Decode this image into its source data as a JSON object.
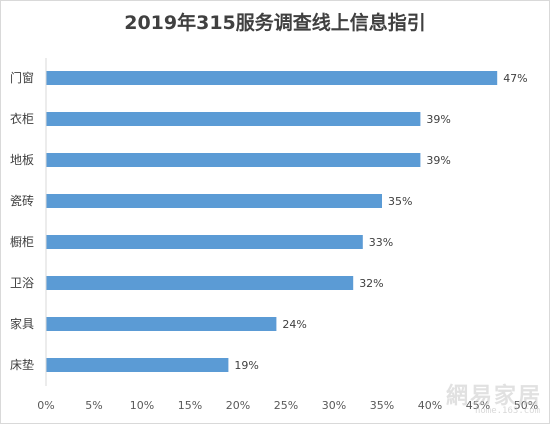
{
  "chart_data": {
    "type": "bar",
    "orientation": "horizontal",
    "title": "2019年315服务调查线上信息指引",
    "categories": [
      "门窗",
      "衣柜",
      "地板",
      "瓷砖",
      "橱柜",
      "卫浴",
      "家具",
      "床垫"
    ],
    "values": [
      47,
      39,
      39,
      35,
      33,
      32,
      24,
      19
    ],
    "value_labels": [
      "47%",
      "39%",
      "39%",
      "35%",
      "33%",
      "32%",
      "24%",
      "19%"
    ],
    "xlim": [
      0,
      50
    ],
    "x_ticks": [
      0,
      5,
      10,
      15,
      20,
      25,
      30,
      35,
      40,
      45,
      50
    ],
    "x_tick_labels": [
      "0%",
      "5%",
      "10%",
      "15%",
      "20%",
      "25%",
      "30%",
      "35%",
      "40%",
      "45%",
      "50%"
    ],
    "bar_color": "#5b9bd5",
    "grid": false,
    "legend": "none"
  },
  "watermark": {
    "text": "網易家居",
    "sub": "home.163.com"
  }
}
